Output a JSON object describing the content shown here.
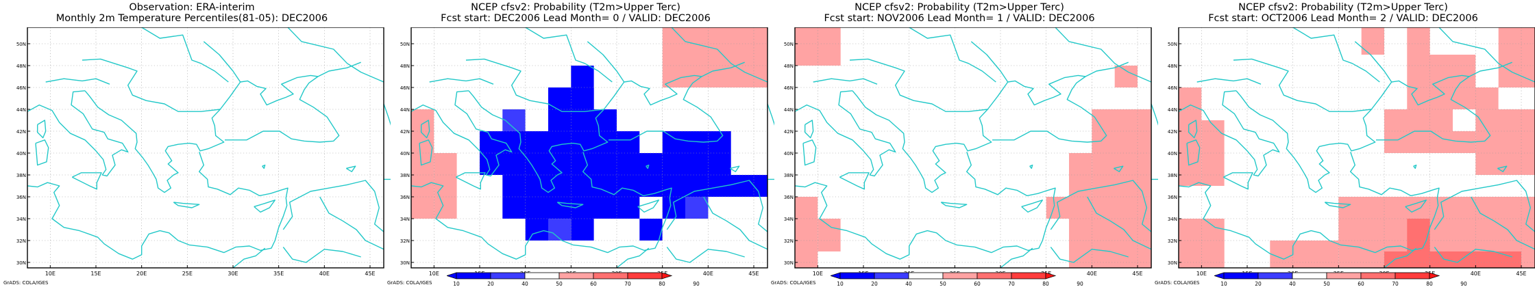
{
  "footer_label": "GrADS: COLA/IGES",
  "map": {
    "lon_min": 7.5,
    "lon_max": 46.5,
    "lat_min": 29.5,
    "lat_max": 51.5,
    "lon_ticks": [
      "10E",
      "15E",
      "20E",
      "25E",
      "30E",
      "35E",
      "40E",
      "45E"
    ],
    "lat_ticks": [
      "30N",
      "32N",
      "34N",
      "36N",
      "38N",
      "40N",
      "42N",
      "44N",
      "46N",
      "48N",
      "50N"
    ],
    "grid": true,
    "coast_color": "#22c8c8"
  },
  "colorbar": {
    "labels": [
      "10",
      "20",
      "40",
      "50",
      "60",
      "70",
      "80",
      "90"
    ],
    "colors": [
      "#0000ff",
      "#3c3cff",
      "#ffffff",
      "#ffa3a3",
      "#ff7070",
      "#ff3c3c",
      "#ff1414"
    ]
  },
  "panels": [
    {
      "title1": "Observation: ERA-interim",
      "title2": "Monthly 2m Temperature Percentiles(81-05): DEC2006",
      "has_colorbar": false,
      "cells": []
    },
    {
      "title1": "NCEP cfsv2: Probability (T2m>Upper Terc)",
      "title2": "Fcst start: DEC2006  Lead Month= 0 / VALID: DEC2006",
      "has_colorbar": true,
      "cells": [
        {
          "lon0": 35,
          "lon1": 46.5,
          "lat0": 46,
          "lat1": 51.5,
          "color": "#ffa3a3"
        },
        {
          "lon0": 7.5,
          "lon1": 10,
          "lat0": 34,
          "lat1": 44,
          "color": "#ffa3a3"
        },
        {
          "lon0": 10,
          "lon1": 12.5,
          "lat0": 34,
          "lat1": 40,
          "color": "#ffa3a3"
        },
        {
          "lon0": 25,
          "lon1": 27.5,
          "lat0": 46,
          "lat1": 48,
          "color": "#0000ff"
        },
        {
          "lon0": 22.5,
          "lon1": 27.5,
          "lat0": 44,
          "lat1": 46,
          "color": "#0000ff"
        },
        {
          "lon0": 22.5,
          "lon1": 30,
          "lat0": 42,
          "lat1": 44,
          "color": "#0000ff"
        },
        {
          "lon0": 15,
          "lon1": 32.5,
          "lat0": 40,
          "lat1": 42,
          "color": "#0000ff"
        },
        {
          "lon0": 35,
          "lon1": 42.5,
          "lat0": 40,
          "lat1": 42,
          "color": "#0000ff"
        },
        {
          "lon0": 15,
          "lon1": 42.5,
          "lat0": 38,
          "lat1": 40,
          "color": "#0000ff"
        },
        {
          "lon0": 17.5,
          "lon1": 46.5,
          "lat0": 36,
          "lat1": 38,
          "color": "#0000ff"
        },
        {
          "lon0": 17.5,
          "lon1": 32.5,
          "lat0": 34,
          "lat1": 36,
          "color": "#0000ff"
        },
        {
          "lon0": 35,
          "lon1": 40,
          "lat0": 34,
          "lat1": 36,
          "color": "#0000ff"
        },
        {
          "lon0": 20,
          "lon1": 22.5,
          "lat0": 32,
          "lat1": 34,
          "color": "#0000ff"
        },
        {
          "lon0": 25,
          "lon1": 27.5,
          "lat0": 32,
          "lat1": 34,
          "color": "#0000ff"
        },
        {
          "lon0": 32.5,
          "lon1": 35,
          "lat0": 32,
          "lat1": 34,
          "color": "#0000ff"
        },
        {
          "lon0": 37.5,
          "lon1": 40,
          "lat0": 34,
          "lat1": 36,
          "color": "#3c3cff"
        },
        {
          "lon0": 22.5,
          "lon1": 25,
          "lat0": 32,
          "lat1": 34,
          "color": "#3c3cff"
        },
        {
          "lon0": 17.5,
          "lon1": 20,
          "lat0": 42,
          "lat1": 44,
          "color": "#3c3cff"
        }
      ]
    },
    {
      "title1": "NCEP cfsv2: Probability (T2m>Upper Terc)",
      "title2": "Fcst start: NOV2006  Lead Month= 1 / VALID: DEC2006",
      "has_colorbar": true,
      "cells": [
        {
          "lon0": 7.5,
          "lon1": 12.5,
          "lat0": 48,
          "lat1": 51.5,
          "color": "#ffa3a3"
        },
        {
          "lon0": 42.5,
          "lon1": 45,
          "lat0": 46,
          "lat1": 48,
          "color": "#ffa3a3"
        },
        {
          "lon0": 40,
          "lon1": 46.5,
          "lat0": 36,
          "lat1": 44,
          "color": "#ffa3a3"
        },
        {
          "lon0": 37.5,
          "lon1": 40,
          "lat0": 36,
          "lat1": 40,
          "color": "#ffa3a3"
        },
        {
          "lon0": 35,
          "lon1": 46.5,
          "lat0": 34,
          "lat1": 36,
          "color": "#ffa3a3"
        },
        {
          "lon0": 37.5,
          "lon1": 46.5,
          "lat0": 29.5,
          "lat1": 34,
          "color": "#ffa3a3"
        },
        {
          "lon0": 7.5,
          "lon1": 10,
          "lat0": 29.5,
          "lat1": 36,
          "color": "#ffa3a3"
        },
        {
          "lon0": 10,
          "lon1": 12.5,
          "lat0": 31,
          "lat1": 34,
          "color": "#ffa3a3"
        }
      ]
    },
    {
      "title1": "NCEP cfsv2: Probability (T2m>Upper Terc)",
      "title2": "Fcst start: OCT2006  Lead Month= 2 / VALID: DEC2006",
      "has_colorbar": true,
      "cells": [
        {
          "lon0": 27.5,
          "lon1": 30,
          "lat0": 49,
          "lat1": 51.5,
          "color": "#ffa3a3"
        },
        {
          "lon0": 32.5,
          "lon1": 35,
          "lat0": 49,
          "lat1": 51.5,
          "color": "#ffa3a3"
        },
        {
          "lon0": 32.5,
          "lon1": 40,
          "lat0": 46,
          "lat1": 49,
          "color": "#ffa3a3"
        },
        {
          "lon0": 42.5,
          "lon1": 46.5,
          "lat0": 46,
          "lat1": 51.5,
          "color": "#ffa3a3"
        },
        {
          "lon0": 32.5,
          "lon1": 42.5,
          "lat0": 44,
          "lat1": 46,
          "color": "#ffa3a3"
        },
        {
          "lon0": 30,
          "lon1": 37.5,
          "lat0": 42,
          "lat1": 44,
          "color": "#ffa3a3"
        },
        {
          "lon0": 40,
          "lon1": 46.5,
          "lat0": 38,
          "lat1": 44,
          "color": "#ffa3a3"
        },
        {
          "lon0": 30,
          "lon1": 40,
          "lat0": 40,
          "lat1": 42,
          "color": "#ffa3a3"
        },
        {
          "lon0": 7.5,
          "lon1": 10,
          "lat0": 37,
          "lat1": 46,
          "color": "#ffa3a3"
        },
        {
          "lon0": 10,
          "lon1": 12.5,
          "lat0": 37,
          "lat1": 43,
          "color": "#ffa3a3"
        },
        {
          "lon0": 7.5,
          "lon1": 12.5,
          "lat0": 29.5,
          "lat1": 34,
          "color": "#ffa3a3"
        },
        {
          "lon0": 17.5,
          "lon1": 25,
          "lat0": 29.5,
          "lat1": 32,
          "color": "#ffa3a3"
        },
        {
          "lon0": 25,
          "lon1": 46.5,
          "lat0": 29.5,
          "lat1": 36,
          "color": "#ffa3a3"
        },
        {
          "lon0": 32.5,
          "lon1": 35,
          "lat0": 31,
          "lat1": 34,
          "color": "#ff7070"
        },
        {
          "lon0": 30,
          "lon1": 45,
          "lat0": 29.5,
          "lat1": 31,
          "color": "#ff7070"
        }
      ]
    }
  ]
}
